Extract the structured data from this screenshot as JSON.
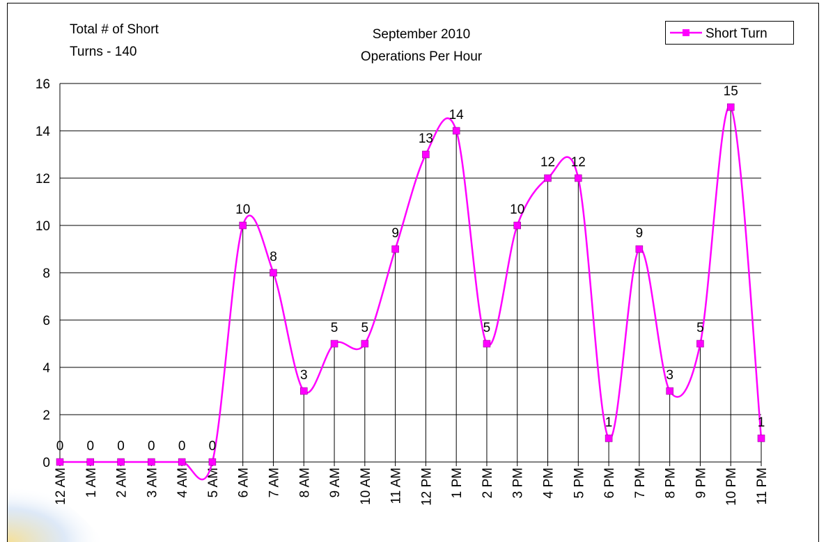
{
  "chart_data": {
    "type": "line",
    "title": "September 2010",
    "subtitle": "Operations Per Hour",
    "annotations": [
      "Total # of Short",
      "Turns - 140"
    ],
    "categories": [
      "12 AM",
      "1 AM",
      "2 AM",
      "3 AM",
      "4 AM",
      "5 AM",
      "6 AM",
      "7 AM",
      "8 AM",
      "9 AM",
      "10 AM",
      "11 AM",
      "12 PM",
      "1 PM",
      "2 PM",
      "3 PM",
      "4 PM",
      "5 PM",
      "6 PM",
      "7 PM",
      "8 PM",
      "9 PM",
      "10 PM",
      "11 PM"
    ],
    "series": [
      {
        "name": "Short Turn",
        "color": "#ff00ff",
        "values": [
          0,
          0,
          0,
          0,
          0,
          0,
          10,
          8,
          3,
          5,
          5,
          9,
          13,
          14,
          5,
          10,
          12,
          12,
          1,
          9,
          3,
          5,
          15,
          1
        ]
      }
    ],
    "ylim": [
      0,
      16
    ],
    "yticks": [
      0,
      2,
      4,
      6,
      8,
      10,
      12,
      14,
      16
    ],
    "grid": true,
    "smooth": true,
    "drop_lines": true,
    "legend": "top-right"
  }
}
